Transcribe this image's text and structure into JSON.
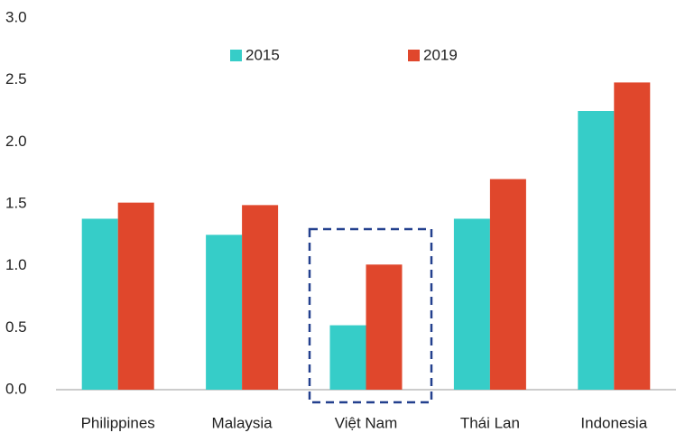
{
  "chart_data": {
    "type": "bar",
    "categories": [
      "Philippines",
      "Malaysia",
      "Việt Nam",
      "Thái Lan",
      "Indonesia"
    ],
    "series": [
      {
        "name": "2015",
        "color": "#36cdc8",
        "values": [
          1.38,
          1.25,
          0.52,
          1.38,
          2.25
        ]
      },
      {
        "name": "2019",
        "color": "#e0472c",
        "values": [
          1.51,
          1.49,
          1.01,
          1.7,
          2.48
        ]
      }
    ],
    "ylim": [
      0,
      3
    ],
    "yticks": [
      {
        "value": 0,
        "label": "0.0"
      },
      0.5,
      {
        "value": 1,
        "label": "1.0"
      },
      1.5,
      {
        "value": 2,
        "label": "2.0"
      },
      2.5,
      {
        "value": 3,
        "label": "3.0"
      }
    ],
    "grid": false,
    "legend": "top"
  }
}
